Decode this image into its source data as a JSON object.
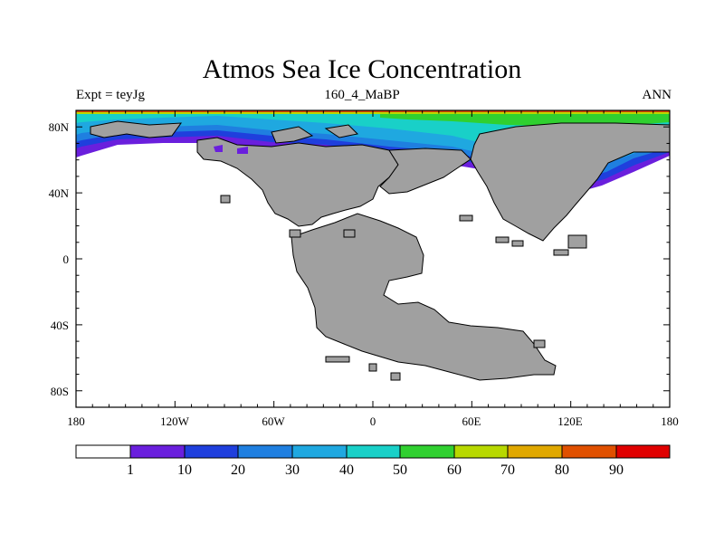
{
  "title": "Atmos Sea Ice Concentration",
  "subtitle_left": "Expt = teyJg",
  "subtitle_center": "160_4_MaBP",
  "subtitle_right": "ANN",
  "map": {
    "lon_range": [
      -180,
      180
    ],
    "lat_range": [
      -90,
      90
    ],
    "x_ticks": [
      "180",
      "120W",
      "60W",
      "0",
      "60E",
      "120E",
      "180"
    ],
    "y_ticks": [
      "80N",
      "40N",
      "0",
      "40S",
      "80S"
    ],
    "land_color": "#a0a0a0",
    "ocean_color": "#ffffff"
  },
  "colorbar": {
    "labels": [
      "1",
      "10",
      "20",
      "30",
      "40",
      "50",
      "60",
      "70",
      "80",
      "90"
    ],
    "colors": [
      "#ffffff",
      "#6a1fdd",
      "#1f3fdd",
      "#1f7fe0",
      "#1fa8e0",
      "#19d0c8",
      "#30d030",
      "#b8d800",
      "#e0a800",
      "#e05000",
      "#e00000"
    ]
  }
}
